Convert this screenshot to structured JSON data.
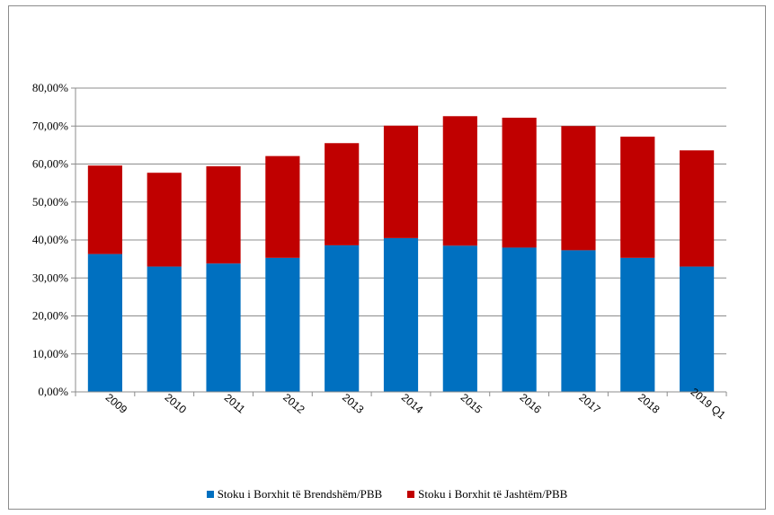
{
  "chart_data": {
    "type": "bar",
    "stacked": true,
    "categories": [
      "2009",
      "2010",
      "2011",
      "2012",
      "2013",
      "2014",
      "2015",
      "2016",
      "2017",
      "2018",
      "2019 Q1"
    ],
    "series": [
      {
        "name": "Stoku i Borxhit të Brendshëm/PBB",
        "color": "#0070C0",
        "values": [
          36.3,
          33.0,
          33.8,
          35.3,
          38.6,
          40.5,
          38.5,
          38.0,
          37.3,
          35.3,
          33.0
        ]
      },
      {
        "name": "Stoku i Borxhit të Jashtëm/PBB",
        "color": "#C00000",
        "values": [
          23.3,
          24.7,
          25.6,
          26.8,
          26.9,
          29.6,
          34.1,
          34.2,
          32.7,
          31.9,
          30.6
        ]
      }
    ],
    "ylim": [
      0,
      80
    ],
    "yticks": [
      "0,00%",
      "10,00%",
      "20,00%",
      "30,00%",
      "40,00%",
      "50,00%",
      "60,00%",
      "70,00%",
      "80,00%"
    ],
    "grid": true,
    "legend_position": "bottom",
    "title": "",
    "xlabel": "",
    "ylabel": ""
  }
}
